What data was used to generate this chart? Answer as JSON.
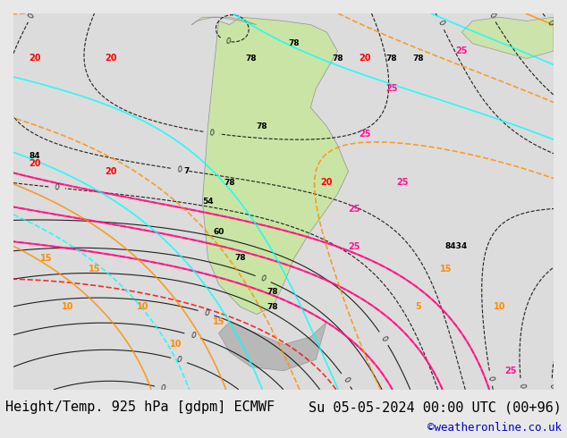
{
  "bg_color": "#e8e8e8",
  "map_bg_color": "#dcdcdc",
  "title_left": "Height/Temp. 925 hPa [gdpm] ECMWF",
  "title_right": "Su 05-05-2024 00:00 UTC (00+96)",
  "credit": "©weatheronline.co.uk",
  "title_fontsize": 11,
  "credit_fontsize": 9,
  "figsize": [
    6.34,
    4.9
  ],
  "dpi": 100
}
